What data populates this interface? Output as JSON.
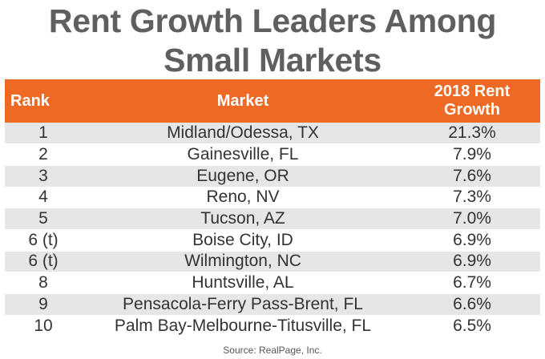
{
  "title": {
    "line1": "Rent Growth Leaders Among",
    "line2": "Small Markets"
  },
  "table": {
    "headers": {
      "rank": "Rank",
      "market": "Market",
      "growth_line1": "2018 Rent",
      "growth_line2": "Growth"
    },
    "rows": [
      {
        "rank": "1",
        "market": "Midland/Odessa, TX",
        "growth": "21.3%"
      },
      {
        "rank": "2",
        "market": "Gainesville, FL",
        "growth": "7.9%"
      },
      {
        "rank": "3",
        "market": "Eugene, OR",
        "growth": "7.6%"
      },
      {
        "rank": "4",
        "market": "Reno, NV",
        "growth": "7.3%"
      },
      {
        "rank": "5",
        "market": "Tucson, AZ",
        "growth": "7.0%"
      },
      {
        "rank": "6 (t)",
        "market": "Boise City, ID",
        "growth": "6.9%"
      },
      {
        "rank": "6 (t)",
        "market": "Wilmington, NC",
        "growth": "6.9%"
      },
      {
        "rank": "8",
        "market": "Huntsville, AL",
        "growth": "6.7%"
      },
      {
        "rank": "9",
        "market": "Pensacola-Ferry Pass-Brent, FL",
        "growth": "6.6%"
      },
      {
        "rank": "10",
        "market": "Palm Bay-Melbourne-Titusville, FL",
        "growth": "6.5%"
      }
    ]
  },
  "source": "Source: RealPage, Inc.",
  "colors": {
    "header_bg": "#ee6a24",
    "title_text": "#5f5f5f",
    "stripe": "#e6e6e6"
  }
}
